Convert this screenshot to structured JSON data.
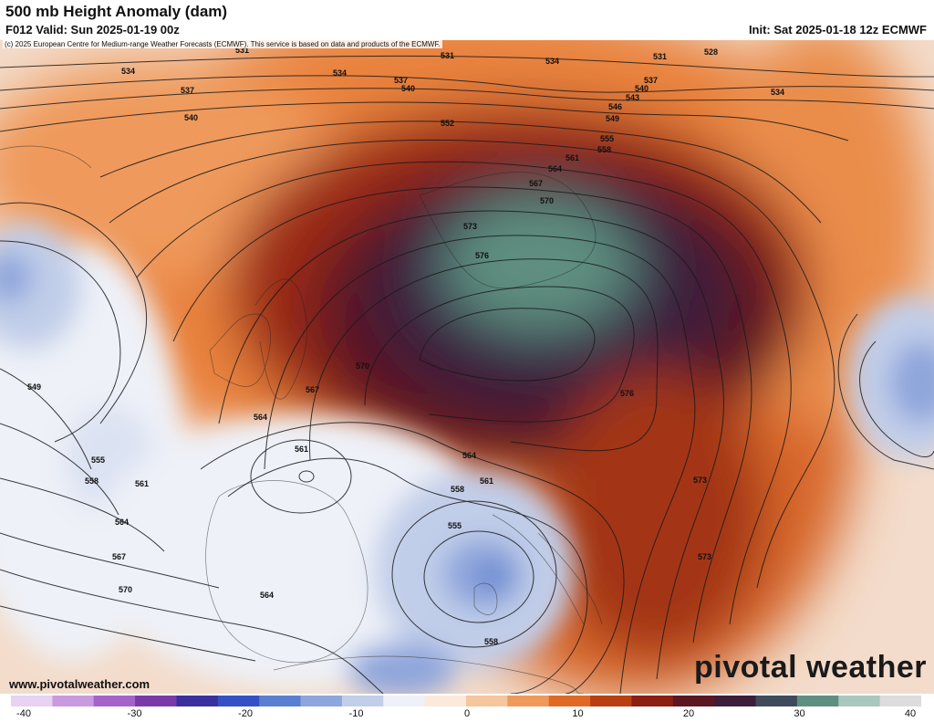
{
  "header": {
    "title": "500 mb Height Anomaly (dam)",
    "valid": "F012 Valid: Sun 2025-01-19 00z",
    "init": "Init: Sat 2025-01-18 12z ECMWF"
  },
  "copyright": "(c) 2025 European Centre for Medium-range Weather Forecasts (ECMWF). This service is based on data and products of the ECMWF.",
  "footer": {
    "site": "www.pivotalweather.com",
    "logo": "pivotal weather"
  },
  "colorbar": {
    "ticks": [
      "-40",
      "-30",
      "-20",
      "-10",
      "0",
      "10",
      "20",
      "30",
      "40"
    ],
    "colors": [
      "#e7d2f2",
      "#c99ae0",
      "#a463c9",
      "#7a3aa8",
      "#3b2f9e",
      "#3550c4",
      "#5b7fd0",
      "#8fa6dc",
      "#c1cee9",
      "#eef1f8",
      "#fbe9dc",
      "#f6c69d",
      "#ef9a5b",
      "#e06a25",
      "#b93e12",
      "#8a1f12",
      "#5c1722",
      "#3e1d3a",
      "#3f4b5a",
      "#5e8f80",
      "#a9c7bd",
      "#dcdcdc"
    ]
  },
  "contour_labels": [
    "531",
    "531",
    "534",
    "534",
    "537",
    "540",
    "531",
    "528",
    "534",
    "537",
    "540",
    "543",
    "546",
    "549",
    "534",
    "537",
    "540",
    "552",
    "555",
    "558",
    "561",
    "564",
    "567",
    "570",
    "573",
    "576",
    "570",
    "567",
    "564",
    "576",
    "573",
    "573",
    "549",
    "555",
    "558",
    "561",
    "561",
    "564",
    "564",
    "567",
    "570",
    "564",
    "561",
    "558",
    "555",
    "558"
  ],
  "map_regions": {
    "positive_center": "Scandinavia / Baltic",
    "negative_center": "Sardinia"
  }
}
